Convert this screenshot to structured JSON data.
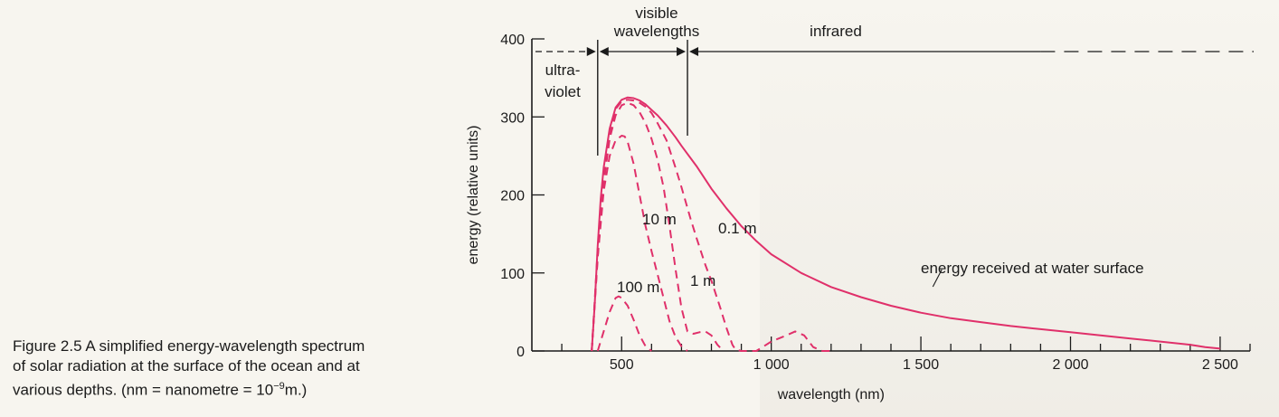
{
  "caption": {
    "line1": "Figure 2.5    A simplified energy-wavelength spectrum",
    "line2": "of solar radiation at the surface of the ocean and at",
    "line3": "various depths.  (nm = nanometre = 10",
    "exp": "−9",
    "line3_end": "m.)"
  },
  "colors": {
    "curve": "#e0306a",
    "axis": "#1b1b1b"
  },
  "chart_data": {
    "type": "line",
    "xlabel": "wavelength (nm)",
    "ylabel": "energy (relative units)",
    "xlim": [
      200,
      2600
    ],
    "ylim": [
      0,
      400
    ],
    "xticks_labeled": [
      500,
      1000,
      1500,
      2000,
      2500
    ],
    "xtick_labels": [
      "500",
      "1 000",
      "1 500",
      "2 000",
      "2 500"
    ],
    "xtick_minor_step": 100,
    "yticks": [
      0,
      100,
      200,
      300,
      400
    ],
    "ytick_labels": [
      "0",
      "100",
      "200",
      "300",
      "400"
    ],
    "series": [
      {
        "name": "energy received at water surface",
        "style": "solid",
        "x": [
          400,
          410,
          420,
          430,
          440,
          460,
          480,
          500,
          520,
          540,
          560,
          580,
          600,
          620,
          650,
          680,
          700,
          750,
          800,
          850,
          900,
          950,
          1000,
          1100,
          1200,
          1300,
          1400,
          1500,
          1600,
          1700,
          1800,
          1900,
          2000,
          2100,
          2200,
          2300,
          2400,
          2450,
          2500
        ],
        "y": [
          0,
          60,
          135,
          195,
          235,
          285,
          312,
          322,
          325,
          324,
          321,
          316,
          309,
          302,
          289,
          274,
          263,
          237,
          208,
          183,
          160,
          141,
          124,
          100,
          82,
          69,
          58,
          49,
          42,
          37,
          32,
          28,
          24,
          20,
          16,
          12,
          8,
          5,
          3
        ]
      },
      {
        "name": "0.1 m",
        "style": "dashed",
        "x": [
          400,
          420,
          440,
          460,
          480,
          500,
          520,
          540,
          560,
          580,
          600,
          620,
          650,
          680,
          700,
          730,
          750,
          780,
          800,
          830,
          850,
          870,
          880,
          900,
          950,
          1000,
          1050,
          1080,
          1110,
          1140,
          1170,
          1200
        ],
        "y": [
          0,
          130,
          225,
          280,
          310,
          320,
          322,
          321,
          318,
          313,
          305,
          292,
          270,
          235,
          210,
          170,
          145,
          110,
          90,
          55,
          30,
          8,
          2,
          0,
          0,
          12,
          20,
          25,
          20,
          5,
          0,
          0
        ]
      },
      {
        "name": "1 m",
        "style": "dashed",
        "x": [
          400,
          420,
          440,
          460,
          480,
          500,
          520,
          540,
          560,
          580,
          600,
          620,
          640,
          660,
          680,
          700,
          720,
          740,
          760,
          780,
          800,
          820,
          840
        ],
        "y": [
          0,
          120,
          215,
          272,
          302,
          315,
          318,
          315,
          306,
          292,
          272,
          245,
          210,
          160,
          105,
          55,
          25,
          22,
          24,
          25,
          20,
          8,
          0
        ]
      },
      {
        "name": "10 m",
        "style": "dashed",
        "x": [
          400,
          410,
          420,
          440,
          460,
          480,
          500,
          510,
          520,
          540,
          560,
          580,
          600,
          620,
          640,
          660,
          680,
          700,
          720
        ],
        "y": [
          0,
          60,
          120,
          205,
          250,
          270,
          276,
          275,
          268,
          240,
          200,
          160,
          128,
          98,
          68,
          38,
          18,
          6,
          0
        ]
      },
      {
        "name": "100 m",
        "style": "dashed",
        "x": [
          420,
          440,
          460,
          480,
          490,
          500,
          520,
          540,
          560,
          580,
          600
        ],
        "y": [
          0,
          25,
          50,
          68,
          70,
          68,
          58,
          40,
          20,
          6,
          0
        ]
      }
    ],
    "annotations": [
      {
        "text": "energy received at water surface"
      },
      {
        "text": "0.1 m"
      },
      {
        "text": "1 m"
      },
      {
        "text": "10 m"
      },
      {
        "text": "100 m"
      },
      {
        "text": "ultra-",
        "group": "uv"
      },
      {
        "text": "violet",
        "group": "uv"
      },
      {
        "text": "visible",
        "group": "visible"
      },
      {
        "text": "wavelengths",
        "group": "visible"
      },
      {
        "text": "infrared",
        "group": "ir"
      }
    ],
    "regions": [
      {
        "name": "ultra-violet",
        "x_range": [
          200,
          420
        ]
      },
      {
        "name": "visible wavelengths",
        "x_range": [
          420,
          720
        ]
      },
      {
        "name": "infrared",
        "x_range": [
          720,
          2600
        ]
      }
    ],
    "grid": false,
    "legend": "none"
  }
}
